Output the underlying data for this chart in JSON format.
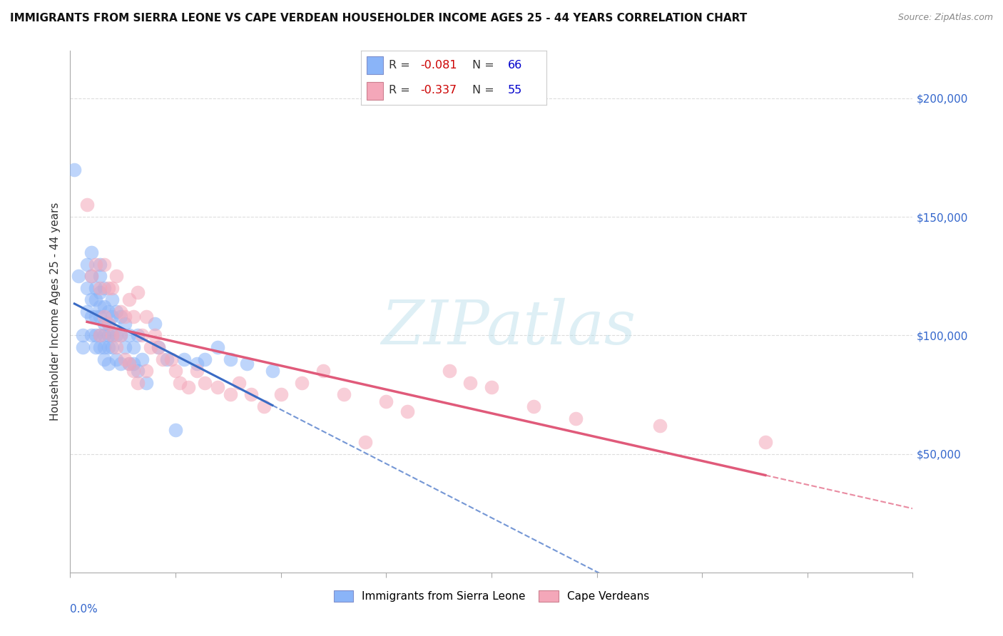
{
  "title": "IMMIGRANTS FROM SIERRA LEONE VS CAPE VERDEAN HOUSEHOLDER INCOME AGES 25 - 44 YEARS CORRELATION CHART",
  "source": "Source: ZipAtlas.com",
  "ylabel": "Householder Income Ages 25 - 44 years",
  "ytick_labels": [
    "$50,000",
    "$100,000",
    "$150,000",
    "$200,000"
  ],
  "ytick_values": [
    50000,
    100000,
    150000,
    200000
  ],
  "ylim": [
    0,
    220000
  ],
  "xlim": [
    0.0,
    0.2
  ],
  "legend_r1": "-0.081",
  "legend_r2": "-0.337",
  "legend_n1": "66",
  "legend_n2": "55",
  "color_blue": "#8ab4f8",
  "color_pink": "#f4a7b9",
  "color_line_blue": "#3a6bc4",
  "color_line_pink": "#e05a7a",
  "watermark_text": "ZIPatlas",
  "background_color": "#FFFFFF",
  "grid_color": "#DDDDDD",
  "sierra_leone_x": [
    0.001,
    0.002,
    0.003,
    0.003,
    0.004,
    0.004,
    0.004,
    0.005,
    0.005,
    0.005,
    0.005,
    0.005,
    0.006,
    0.006,
    0.006,
    0.006,
    0.006,
    0.007,
    0.007,
    0.007,
    0.007,
    0.007,
    0.007,
    0.007,
    0.008,
    0.008,
    0.008,
    0.008,
    0.008,
    0.008,
    0.009,
    0.009,
    0.009,
    0.009,
    0.009,
    0.01,
    0.01,
    0.01,
    0.01,
    0.011,
    0.011,
    0.011,
    0.012,
    0.012,
    0.012,
    0.013,
    0.013,
    0.014,
    0.014,
    0.015,
    0.015,
    0.016,
    0.016,
    0.017,
    0.018,
    0.02,
    0.021,
    0.023,
    0.025,
    0.027,
    0.03,
    0.032,
    0.035,
    0.038,
    0.042,
    0.048
  ],
  "sierra_leone_y": [
    170000,
    125000,
    100000,
    95000,
    130000,
    120000,
    110000,
    135000,
    125000,
    115000,
    108000,
    100000,
    120000,
    115000,
    108000,
    100000,
    95000,
    130000,
    125000,
    118000,
    112000,
    108000,
    100000,
    95000,
    120000,
    112000,
    105000,
    100000,
    95000,
    90000,
    110000,
    105000,
    100000,
    95000,
    88000,
    115000,
    108000,
    100000,
    95000,
    110000,
    100000,
    90000,
    108000,
    100000,
    88000,
    105000,
    95000,
    100000,
    88000,
    95000,
    88000,
    100000,
    85000,
    90000,
    80000,
    105000,
    95000,
    90000,
    60000,
    90000,
    88000,
    90000,
    95000,
    90000,
    88000,
    85000
  ],
  "cape_verdean_x": [
    0.004,
    0.005,
    0.006,
    0.007,
    0.007,
    0.008,
    0.008,
    0.009,
    0.009,
    0.01,
    0.01,
    0.011,
    0.011,
    0.012,
    0.012,
    0.013,
    0.013,
    0.014,
    0.014,
    0.015,
    0.015,
    0.016,
    0.016,
    0.017,
    0.018,
    0.018,
    0.019,
    0.02,
    0.021,
    0.022,
    0.024,
    0.025,
    0.026,
    0.028,
    0.03,
    0.032,
    0.035,
    0.038,
    0.04,
    0.043,
    0.046,
    0.05,
    0.055,
    0.06,
    0.065,
    0.07,
    0.075,
    0.08,
    0.09,
    0.095,
    0.1,
    0.11,
    0.12,
    0.14,
    0.165
  ],
  "cape_verdean_y": [
    155000,
    125000,
    130000,
    120000,
    100000,
    130000,
    108000,
    120000,
    105000,
    120000,
    100000,
    125000,
    95000,
    110000,
    100000,
    108000,
    90000,
    115000,
    88000,
    108000,
    85000,
    118000,
    80000,
    100000,
    108000,
    85000,
    95000,
    100000,
    95000,
    90000,
    90000,
    85000,
    80000,
    78000,
    85000,
    80000,
    78000,
    75000,
    80000,
    75000,
    70000,
    75000,
    80000,
    85000,
    75000,
    55000,
    72000,
    68000,
    85000,
    80000,
    78000,
    70000,
    65000,
    62000,
    55000
  ]
}
